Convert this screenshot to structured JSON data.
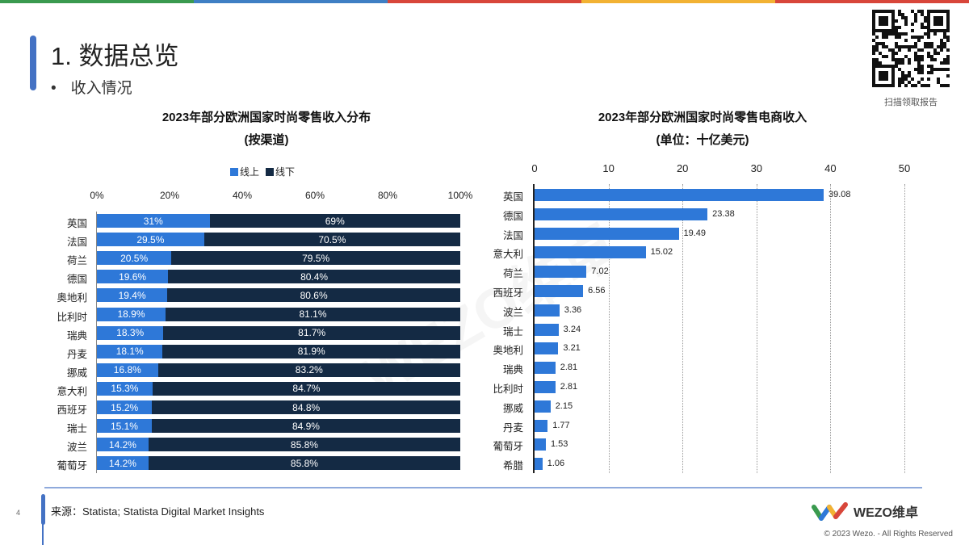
{
  "colors": {
    "topbar": [
      "#3a9a4f",
      "#3f7fc4",
      "#d8463a",
      "#f2b233",
      "#d8463a"
    ],
    "accent": "#4472c4",
    "online": "#2e78d8",
    "offline": "#142a44",
    "bar": "#2e78d8"
  },
  "header": {
    "title": "1. 数据总览",
    "bullet": "•",
    "subtitle": "收入情况"
  },
  "qr": {
    "caption": "扫描领取报告"
  },
  "watermark": "WEZO维卓",
  "chart_data": [
    {
      "type": "bar",
      "stacked": true,
      "orientation": "horizontal",
      "title": "2023年部分欧洲国家时尚零售收入分布",
      "subtitle": "(按渠道)",
      "legend": [
        "线上",
        "线下"
      ],
      "legend_position": "top",
      "ticks": [
        "0%",
        "20%",
        "40%",
        "60%",
        "80%",
        "100%"
      ],
      "xlim": [
        0,
        100
      ],
      "categories": [
        "英国",
        "法国",
        "荷兰",
        "德国",
        "奥地利",
        "比利时",
        "瑞典",
        "丹麦",
        "挪威",
        "意大利",
        "西班牙",
        "瑞士",
        "波兰",
        "葡萄牙"
      ],
      "series": [
        {
          "name": "线上",
          "values": [
            31,
            29.5,
            20.5,
            19.6,
            19.4,
            18.9,
            18.3,
            18.1,
            16.8,
            15.3,
            15.2,
            15.1,
            14.2,
            14.2
          ]
        },
        {
          "name": "线下",
          "values": [
            69,
            70.5,
            79.5,
            80.4,
            80.6,
            81.1,
            81.7,
            81.9,
            83.2,
            84.7,
            84.8,
            84.9,
            85.8,
            85.8
          ]
        }
      ]
    },
    {
      "type": "bar",
      "orientation": "horizontal",
      "title": "2023年部分欧洲国家时尚零售电商收入",
      "subtitle": "(单位：十亿美元)",
      "ticks": [
        "0",
        "10",
        "20",
        "30",
        "40",
        "50"
      ],
      "xlim": [
        0,
        50
      ],
      "grid": true,
      "categories": [
        "英国",
        "德国",
        "法国",
        "意大利",
        "荷兰",
        "西班牙",
        "波兰",
        "瑞士",
        "奥地利",
        "瑞典",
        "比利时",
        "挪威",
        "丹麦",
        "葡萄牙",
        "希腊"
      ],
      "values": [
        39.08,
        23.38,
        19.49,
        15.02,
        7.02,
        6.56,
        3.36,
        3.24,
        3.21,
        2.81,
        2.81,
        2.15,
        1.77,
        1.53,
        1.06
      ]
    }
  ],
  "footer": {
    "page": "4",
    "source": "来源：Statista; Statista Digital Market Insights",
    "brand": "WEZO维卓",
    "copyright": "© 2023 Wezo. - All Rights Reserved"
  }
}
